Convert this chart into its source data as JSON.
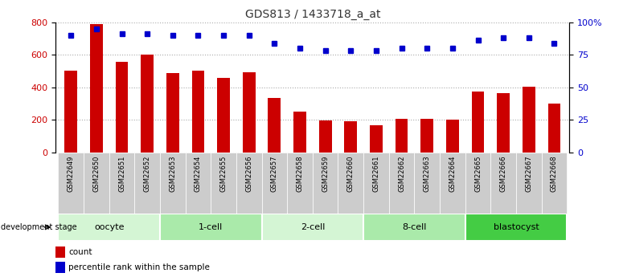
{
  "title": "GDS813 / 1433718_a_at",
  "samples": [
    "GSM22649",
    "GSM22650",
    "GSM22651",
    "GSM22652",
    "GSM22653",
    "GSM22654",
    "GSM22655",
    "GSM22656",
    "GSM22657",
    "GSM22658",
    "GSM22659",
    "GSM22660",
    "GSM22661",
    "GSM22662",
    "GSM22663",
    "GSM22664",
    "GSM22665",
    "GSM22666",
    "GSM22667",
    "GSM22668"
  ],
  "counts": [
    500,
    790,
    555,
    600,
    485,
    500,
    460,
    490,
    335,
    250,
    195,
    190,
    165,
    205,
    205,
    200,
    375,
    365,
    405,
    300
  ],
  "percentiles": [
    90,
    95,
    91,
    91,
    90,
    90,
    90,
    90,
    84,
    80,
    78,
    78,
    78,
    80,
    80,
    80,
    86,
    88,
    88,
    84
  ],
  "groups": [
    {
      "label": "oocyte",
      "start": 0,
      "end": 4,
      "color": "#d4f5d4"
    },
    {
      "label": "1-cell",
      "start": 4,
      "end": 8,
      "color": "#aaeaaa"
    },
    {
      "label": "2-cell",
      "start": 8,
      "end": 12,
      "color": "#d4f5d4"
    },
    {
      "label": "8-cell",
      "start": 12,
      "end": 16,
      "color": "#aaeaaa"
    },
    {
      "label": "blastocyst",
      "start": 16,
      "end": 20,
      "color": "#44cc44"
    }
  ],
  "bar_color": "#cc0000",
  "dot_color": "#0000cc",
  "left_ylim": [
    0,
    800
  ],
  "left_yticks": [
    0,
    200,
    400,
    600,
    800
  ],
  "right_ylim": [
    0,
    100
  ],
  "right_yticks": [
    0,
    25,
    50,
    75,
    100
  ],
  "grid_color": "#aaaaaa",
  "bg_color": "#ffffff",
  "tick_area_color": "#cccccc",
  "title_fontsize": 10,
  "axis_fontsize": 8,
  "label_fontsize": 8
}
